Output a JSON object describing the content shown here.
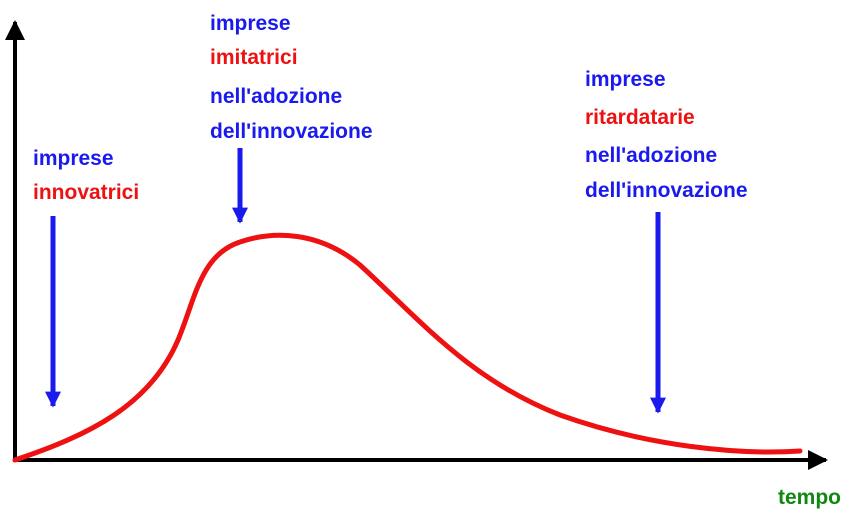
{
  "axis_label": "tempo",
  "annotations": [
    {
      "lines": [
        "imprese",
        "innovatrici"
      ]
    },
    {
      "lines": [
        "imprese",
        "imitatrici",
        "nell'adozione",
        "dell'innovazione"
      ]
    },
    {
      "lines": [
        "imprese",
        "ritardatarie",
        "nell'adozione",
        "dell'innovazione"
      ]
    }
  ]
}
